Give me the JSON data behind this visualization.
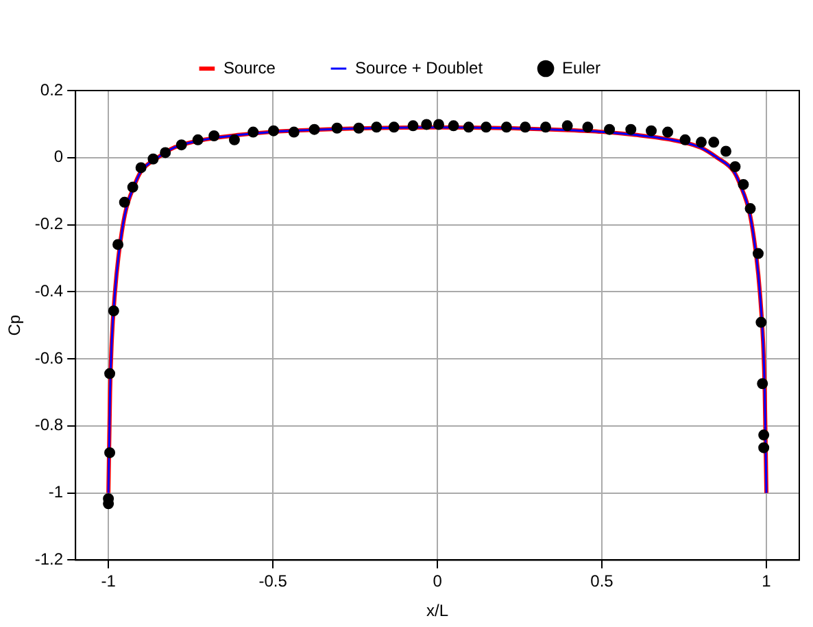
{
  "chart_data": {
    "type": "line",
    "xlabel": "x/L",
    "ylabel": "Cp",
    "xlim": [
      -1.1,
      1.1
    ],
    "ylim": [
      -1.2,
      0.2
    ],
    "xticks": [
      -1,
      -0.5,
      0,
      0.5,
      1
    ],
    "yticks": [
      -1.2,
      -1,
      -0.8,
      -0.6,
      -0.4,
      -0.2,
      0,
      0.2
    ],
    "grid": true,
    "legend": "top",
    "series": [
      {
        "name": "Source",
        "color": "#ff0000",
        "marker": "none",
        "x": [
          -1,
          -0.995,
          -0.99,
          -0.98,
          -0.97,
          -0.95,
          -0.92,
          -0.9,
          -0.85,
          -0.8,
          -0.7,
          -0.6,
          -0.5,
          -0.4,
          -0.2,
          0,
          0.2,
          0.4,
          0.5,
          0.6,
          0.7,
          0.8,
          0.85,
          0.9,
          0.92,
          0.95,
          0.97,
          0.98,
          0.99,
          0.995,
          1
        ],
        "values": [
          -1,
          -0.7,
          -0.55,
          -0.4,
          -0.3,
          -0.17,
          -0.08,
          -0.04,
          0,
          0.03,
          0.055,
          0.068,
          0.077,
          0.082,
          0.088,
          0.09,
          0.088,
          0.082,
          0.077,
          0.068,
          0.055,
          0.03,
          0,
          -0.04,
          -0.08,
          -0.17,
          -0.3,
          -0.4,
          -0.55,
          -0.7,
          -1
        ]
      },
      {
        "name": "Source + Doublet",
        "color": "#0000ff",
        "marker": "none",
        "x": [
          -1,
          -0.995,
          -0.99,
          -0.98,
          -0.97,
          -0.95,
          -0.92,
          -0.9,
          -0.85,
          -0.8,
          -0.7,
          -0.6,
          -0.5,
          -0.4,
          -0.2,
          0,
          0.2,
          0.4,
          0.5,
          0.6,
          0.7,
          0.8,
          0.85,
          0.9,
          0.92,
          0.95,
          0.97,
          0.98,
          0.99,
          0.995,
          1
        ],
        "values": [
          -1,
          -0.7,
          -0.55,
          -0.4,
          -0.3,
          -0.17,
          -0.08,
          -0.04,
          0,
          0.03,
          0.055,
          0.068,
          0.077,
          0.082,
          0.088,
          0.09,
          0.088,
          0.082,
          0.077,
          0.068,
          0.055,
          0.03,
          0,
          -0.04,
          -0.08,
          -0.17,
          -0.3,
          -0.4,
          -0.55,
          -0.7,
          -1
        ]
      },
      {
        "name": "Euler",
        "type": "scatter",
        "color": "#000000",
        "marker": "circle",
        "x": [
          -1,
          -1,
          -0.996,
          -0.996,
          -0.984,
          -0.971,
          -0.951,
          -0.926,
          -0.901,
          -0.864,
          -0.827,
          -0.778,
          -0.728,
          -0.679,
          -0.617,
          -0.56,
          -0.498,
          -0.436,
          -0.374,
          -0.305,
          -0.239,
          -0.185,
          -0.132,
          -0.074,
          -0.033,
          0.004,
          0.049,
          0.095,
          0.148,
          0.21,
          0.267,
          0.329,
          0.395,
          0.457,
          0.523,
          0.588,
          0.65,
          0.7,
          0.753,
          0.802,
          0.84,
          0.877,
          0.905,
          0.93,
          0.951,
          0.975,
          0.984,
          0.988,
          0.992,
          0.992
        ],
        "values": [
          -1.032,
          -1.017,
          -0.88,
          -0.644,
          -0.457,
          -0.259,
          -0.133,
          -0.088,
          -0.03,
          -0.004,
          0.015,
          0.038,
          0.053,
          0.065,
          0.053,
          0.076,
          0.08,
          0.076,
          0.084,
          0.088,
          0.088,
          0.091,
          0.091,
          0.095,
          0.099,
          0.099,
          0.095,
          0.091,
          0.091,
          0.091,
          0.091,
          0.091,
          0.095,
          0.091,
          0.084,
          0.084,
          0.08,
          0.076,
          0.053,
          0.046,
          0.046,
          0.019,
          -0.027,
          -0.08,
          -0.152,
          -0.286,
          -0.491,
          -0.674,
          -0.827,
          -0.865
        ]
      }
    ]
  }
}
